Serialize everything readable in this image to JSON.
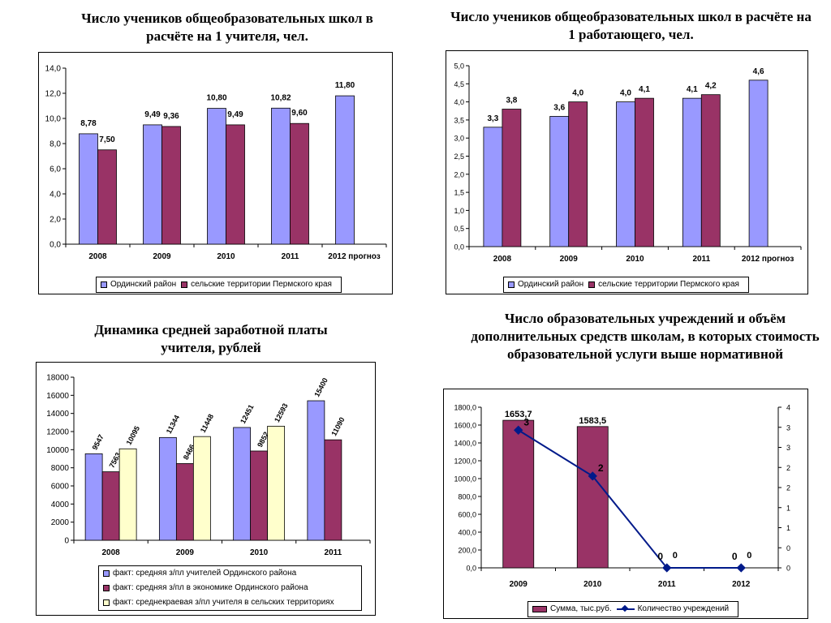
{
  "colors": {
    "lavender": "#9999ff",
    "maroon": "#993366",
    "cream": "#ffffcc",
    "line": "#001a8a"
  },
  "charts": [
    {
      "title": "Число учеников общеобразовательных школ в расчёте на 1 учителя, чел.",
      "chart_data": {
        "type": "bar",
        "categories": [
          "2008",
          "2009",
          "2010",
          "2011",
          "2012 прогноз"
        ],
        "series": [
          {
            "name": "Ординский район",
            "values": [
              8.78,
              9.49,
              10.8,
              10.82,
              11.8
            ],
            "labels": [
              "8,78",
              "9,49",
              "10,80",
              "10,82",
              "11,80"
            ],
            "color": "#9999ff"
          },
          {
            "name": "сельские территории Пермского края",
            "values": [
              7.5,
              9.36,
              9.49,
              9.6,
              null
            ],
            "labels": [
              "7,50",
              "9,36",
              "9,49",
              "9,60",
              ""
            ],
            "color": "#993366"
          }
        ],
        "ylim": [
          0,
          14
        ],
        "yticks": [
          "0,0",
          "2,0",
          "4,0",
          "6,0",
          "8,0",
          "10,0",
          "12,0",
          "14,0"
        ],
        "grid": false,
        "legend_position": "bottom"
      }
    },
    {
      "title": "Число учеников общеобразовательных школ в расчёте на 1 работающего, чел.",
      "chart_data": {
        "type": "bar",
        "categories": [
          "2008",
          "2009",
          "2010",
          "2011",
          "2012 прогноз"
        ],
        "series": [
          {
            "name": "Ординский район",
            "values": [
              3.3,
              3.6,
              4.0,
              4.1,
              4.6
            ],
            "labels": [
              "3,3",
              "3,6",
              "4,0",
              "4,1",
              "4,6"
            ],
            "color": "#9999ff"
          },
          {
            "name": "сельские территории Пермского края",
            "values": [
              3.8,
              4.0,
              4.1,
              4.2,
              null
            ],
            "labels": [
              "3,8",
              "4,0",
              "4,1",
              "4,2",
              ""
            ],
            "color": "#993366"
          }
        ],
        "ylim": [
          0,
          5
        ],
        "yticks": [
          "0,0",
          "0,5",
          "1,0",
          "1,5",
          "2,0",
          "2,5",
          "3,0",
          "3,5",
          "4,0",
          "4,5",
          "5,0"
        ],
        "grid": false,
        "legend_position": "bottom"
      }
    },
    {
      "title": "Динамика средней заработной платы учителя, рублей",
      "chart_data": {
        "type": "bar",
        "categories": [
          "2008",
          "2009",
          "2010",
          "2011"
        ],
        "series": [
          {
            "name": "факт: средняя з/пл учителей Ординского района",
            "values": [
              9547,
              11344,
              12451,
              15400
            ],
            "labels": [
              "9547",
              "11344",
              "12451",
              "15400"
            ],
            "color": "#9999ff"
          },
          {
            "name": "факт: средняя з/пл в экономике Ординского района",
            "values": [
              7563,
              8466,
              9852,
              11090
            ],
            "labels": [
              "7563",
              "8466",
              "9852",
              "11090"
            ],
            "color": "#993366"
          },
          {
            "name": "факт: среднекраевая з/пл учителя в сельских территориях",
            "values": [
              10095,
              11448,
              12593,
              null
            ],
            "labels": [
              "10095",
              "11448",
              "12593",
              ""
            ],
            "color": "#ffffcc"
          }
        ],
        "ylim": [
          0,
          18000
        ],
        "yticks": [
          "0",
          "2000",
          "4000",
          "6000",
          "8000",
          "10000",
          "12000",
          "14000",
          "16000",
          "18000"
        ],
        "grid": false,
        "legend_position": "bottom"
      }
    },
    {
      "title": "Число образовательных учреждений и объём дополнительных средств школам, в которых стоимость образовательной услуги выше нормативной",
      "chart_data": {
        "type": "bar",
        "categories": [
          "2009",
          "2010",
          "2011",
          "2012"
        ],
        "series": [
          {
            "name": "Сумма, тыс.руб.",
            "type": "bar",
            "axis": "left",
            "values": [
              1653.7,
              1583.5,
              0,
              0
            ],
            "labels": [
              "1653,7",
              "1583,5",
              "0",
              "0"
            ],
            "color": "#993366"
          },
          {
            "name": "Количество учреждений",
            "type": "line",
            "axis": "right",
            "values": [
              3,
              2,
              0,
              0
            ],
            "labels": [
              "3",
              "2",
              "0",
              "0"
            ],
            "color": "#001a8a"
          }
        ],
        "ylim": [
          0,
          1800
        ],
        "yticks": [
          "0,0",
          "200,0",
          "400,0",
          "600,0",
          "800,0",
          "1000,0",
          "1200,0",
          "1400,0",
          "1600,0",
          "1800,0"
        ],
        "y2lim": [
          0,
          3.5
        ],
        "y2ticks": [
          "0",
          "0",
          "1",
          "1",
          "2",
          "2",
          "3",
          "3",
          "4"
        ],
        "grid": false,
        "legend_position": "bottom"
      }
    }
  ]
}
